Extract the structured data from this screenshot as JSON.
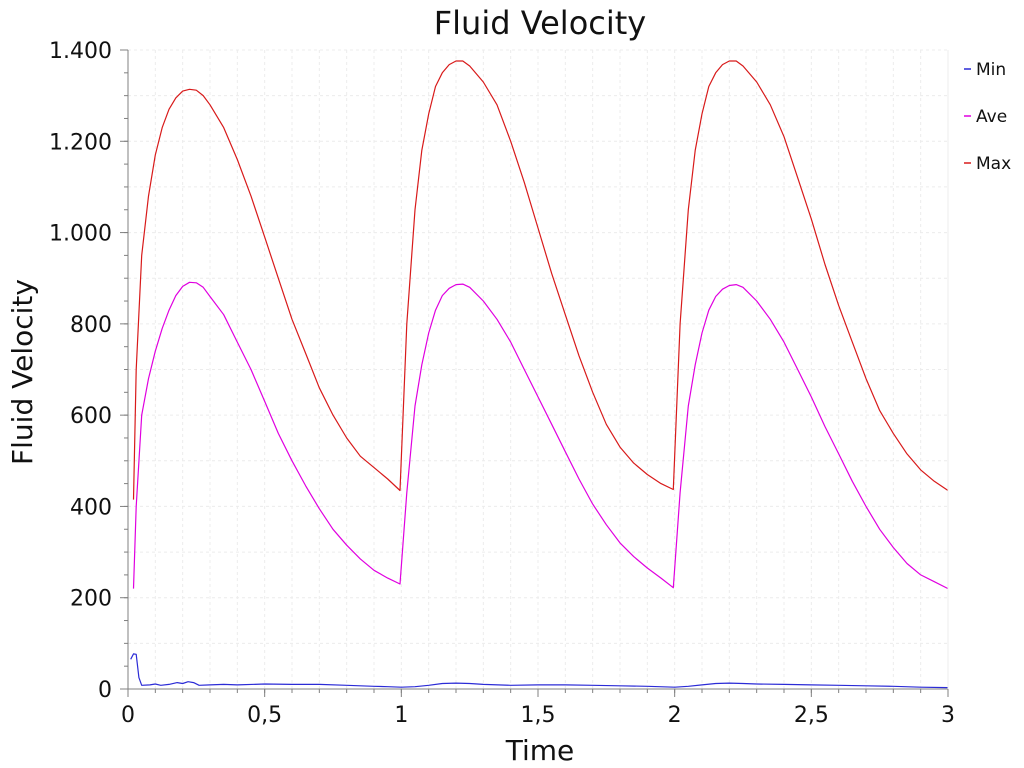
{
  "colors": {
    "background": "#ffffff",
    "grid": "#ececec",
    "axis": "#808080",
    "text": "#111111",
    "min": "#2b2bd6",
    "ave": "#e000e0",
    "max": "#d81a1a"
  },
  "chart_data": {
    "type": "line",
    "title": "Fluid Velocity",
    "xlabel": "Time",
    "ylabel": "Fluid Velocity",
    "xlim": [
      0,
      3
    ],
    "ylim": [
      0,
      1400
    ],
    "grid": true,
    "legend_placement": "top-right",
    "x_ticks": [
      {
        "value": 0,
        "label": "0"
      },
      {
        "value": 0.5,
        "label": "0,5"
      },
      {
        "value": 1,
        "label": "1"
      },
      {
        "value": 1.5,
        "label": "1,5"
      },
      {
        "value": 2,
        "label": "2"
      },
      {
        "value": 2.5,
        "label": "2,5"
      },
      {
        "value": 3,
        "label": "3"
      }
    ],
    "y_ticks": [
      {
        "value": 0,
        "label": "0"
      },
      {
        "value": 200,
        "label": "200"
      },
      {
        "value": 400,
        "label": "400"
      },
      {
        "value": 600,
        "label": "600"
      },
      {
        "value": 800,
        "label": "800"
      },
      {
        "value": 1000,
        "label": "1.000"
      },
      {
        "value": 1200,
        "label": "1.200"
      },
      {
        "value": 1400,
        "label": "1.400"
      }
    ],
    "series": [
      {
        "name": "Min",
        "color": "#2b2bd6",
        "points": [
          [
            0.01,
            65
          ],
          [
            0.02,
            77
          ],
          [
            0.03,
            76
          ],
          [
            0.04,
            25
          ],
          [
            0.05,
            8
          ],
          [
            0.08,
            9
          ],
          [
            0.1,
            11
          ],
          [
            0.12,
            8
          ],
          [
            0.15,
            10
          ],
          [
            0.18,
            14
          ],
          [
            0.2,
            12
          ],
          [
            0.22,
            16
          ],
          [
            0.24,
            14
          ],
          [
            0.26,
            8
          ],
          [
            0.3,
            9
          ],
          [
            0.35,
            10
          ],
          [
            0.4,
            9
          ],
          [
            0.5,
            11
          ],
          [
            0.6,
            10
          ],
          [
            0.7,
            10
          ],
          [
            0.8,
            8
          ],
          [
            0.9,
            6
          ],
          [
            0.95,
            5
          ],
          [
            1.0,
            4
          ],
          [
            1.05,
            5
          ],
          [
            1.1,
            8
          ],
          [
            1.15,
            12
          ],
          [
            1.2,
            13
          ],
          [
            1.25,
            12
          ],
          [
            1.3,
            10
          ],
          [
            1.4,
            8
          ],
          [
            1.5,
            9
          ],
          [
            1.6,
            9
          ],
          [
            1.7,
            8
          ],
          [
            1.8,
            7
          ],
          [
            1.9,
            6
          ],
          [
            2.0,
            4
          ],
          [
            2.05,
            6
          ],
          [
            2.1,
            9
          ],
          [
            2.15,
            12
          ],
          [
            2.2,
            13
          ],
          [
            2.25,
            12
          ],
          [
            2.3,
            11
          ],
          [
            2.4,
            10
          ],
          [
            2.5,
            9
          ],
          [
            2.6,
            8
          ],
          [
            2.7,
            7
          ],
          [
            2.8,
            6
          ],
          [
            2.9,
            4
          ],
          [
            3.0,
            3
          ]
        ]
      },
      {
        "name": "Ave",
        "color": "#e000e0",
        "points": [
          [
            0.02,
            220
          ],
          [
            0.03,
            400
          ],
          [
            0.05,
            600
          ],
          [
            0.075,
            680
          ],
          [
            0.1,
            740
          ],
          [
            0.125,
            790
          ],
          [
            0.15,
            830
          ],
          [
            0.175,
            862
          ],
          [
            0.2,
            882
          ],
          [
            0.225,
            891
          ],
          [
            0.25,
            890
          ],
          [
            0.275,
            880
          ],
          [
            0.3,
            860
          ],
          [
            0.35,
            820
          ],
          [
            0.4,
            760
          ],
          [
            0.45,
            700
          ],
          [
            0.5,
            630
          ],
          [
            0.55,
            560
          ],
          [
            0.6,
            500
          ],
          [
            0.65,
            445
          ],
          [
            0.7,
            395
          ],
          [
            0.75,
            350
          ],
          [
            0.8,
            315
          ],
          [
            0.85,
            285
          ],
          [
            0.9,
            260
          ],
          [
            0.95,
            243
          ],
          [
            0.995,
            230
          ],
          [
            1.02,
            430
          ],
          [
            1.05,
            620
          ],
          [
            1.075,
            710
          ],
          [
            1.1,
            780
          ],
          [
            1.125,
            830
          ],
          [
            1.15,
            862
          ],
          [
            1.175,
            878
          ],
          [
            1.2,
            886
          ],
          [
            1.225,
            887
          ],
          [
            1.25,
            880
          ],
          [
            1.3,
            850
          ],
          [
            1.35,
            810
          ],
          [
            1.4,
            760
          ],
          [
            1.45,
            700
          ],
          [
            1.5,
            640
          ],
          [
            1.55,
            580
          ],
          [
            1.6,
            520
          ],
          [
            1.65,
            460
          ],
          [
            1.7,
            405
          ],
          [
            1.75,
            360
          ],
          [
            1.8,
            320
          ],
          [
            1.85,
            290
          ],
          [
            1.9,
            265
          ],
          [
            1.95,
            243
          ],
          [
            1.995,
            222
          ],
          [
            2.02,
            430
          ],
          [
            2.05,
            620
          ],
          [
            2.075,
            710
          ],
          [
            2.1,
            780
          ],
          [
            2.125,
            830
          ],
          [
            2.15,
            860
          ],
          [
            2.175,
            876
          ],
          [
            2.2,
            884
          ],
          [
            2.225,
            886
          ],
          [
            2.25,
            880
          ],
          [
            2.3,
            850
          ],
          [
            2.35,
            810
          ],
          [
            2.4,
            760
          ],
          [
            2.45,
            700
          ],
          [
            2.5,
            640
          ],
          [
            2.55,
            575
          ],
          [
            2.6,
            515
          ],
          [
            2.65,
            455
          ],
          [
            2.7,
            400
          ],
          [
            2.75,
            350
          ],
          [
            2.8,
            310
          ],
          [
            2.85,
            275
          ],
          [
            2.9,
            250
          ],
          [
            2.95,
            235
          ],
          [
            3.0,
            220
          ]
        ]
      },
      {
        "name": "Max",
        "color": "#d81a1a",
        "points": [
          [
            0.02,
            415
          ],
          [
            0.03,
            700
          ],
          [
            0.05,
            950
          ],
          [
            0.075,
            1080
          ],
          [
            0.1,
            1170
          ],
          [
            0.125,
            1230
          ],
          [
            0.15,
            1270
          ],
          [
            0.175,
            1295
          ],
          [
            0.2,
            1310
          ],
          [
            0.225,
            1314
          ],
          [
            0.25,
            1312
          ],
          [
            0.275,
            1300
          ],
          [
            0.3,
            1280
          ],
          [
            0.35,
            1230
          ],
          [
            0.4,
            1160
          ],
          [
            0.45,
            1080
          ],
          [
            0.5,
            990
          ],
          [
            0.55,
            900
          ],
          [
            0.6,
            810
          ],
          [
            0.65,
            735
          ],
          [
            0.7,
            660
          ],
          [
            0.75,
            600
          ],
          [
            0.8,
            550
          ],
          [
            0.85,
            510
          ],
          [
            0.9,
            485
          ],
          [
            0.95,
            460
          ],
          [
            0.995,
            435
          ],
          [
            1.02,
            800
          ],
          [
            1.05,
            1050
          ],
          [
            1.075,
            1180
          ],
          [
            1.1,
            1260
          ],
          [
            1.125,
            1320
          ],
          [
            1.15,
            1350
          ],
          [
            1.175,
            1368
          ],
          [
            1.2,
            1376
          ],
          [
            1.225,
            1376
          ],
          [
            1.25,
            1365
          ],
          [
            1.3,
            1330
          ],
          [
            1.35,
            1280
          ],
          [
            1.4,
            1200
          ],
          [
            1.45,
            1110
          ],
          [
            1.5,
            1010
          ],
          [
            1.55,
            910
          ],
          [
            1.6,
            820
          ],
          [
            1.65,
            730
          ],
          [
            1.7,
            650
          ],
          [
            1.75,
            580
          ],
          [
            1.8,
            530
          ],
          [
            1.85,
            495
          ],
          [
            1.9,
            470
          ],
          [
            1.95,
            450
          ],
          [
            1.995,
            437
          ],
          [
            2.02,
            800
          ],
          [
            2.05,
            1050
          ],
          [
            2.075,
            1180
          ],
          [
            2.1,
            1260
          ],
          [
            2.125,
            1320
          ],
          [
            2.15,
            1350
          ],
          [
            2.175,
            1368
          ],
          [
            2.2,
            1376
          ],
          [
            2.225,
            1376
          ],
          [
            2.25,
            1365
          ],
          [
            2.3,
            1330
          ],
          [
            2.35,
            1280
          ],
          [
            2.4,
            1210
          ],
          [
            2.45,
            1120
          ],
          [
            2.5,
            1030
          ],
          [
            2.55,
            930
          ],
          [
            2.6,
            840
          ],
          [
            2.65,
            760
          ],
          [
            2.7,
            680
          ],
          [
            2.75,
            610
          ],
          [
            2.8,
            560
          ],
          [
            2.85,
            515
          ],
          [
            2.9,
            480
          ],
          [
            2.95,
            455
          ],
          [
            3.0,
            435
          ]
        ]
      }
    ]
  }
}
